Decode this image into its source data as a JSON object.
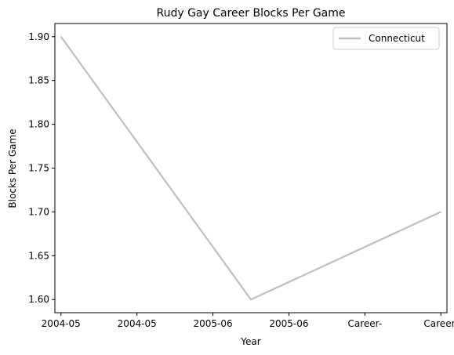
{
  "chart_data": {
    "type": "line",
    "title": "Rudy Gay Career Blocks Per Game",
    "xlabel": "Year",
    "ylabel": "Blocks Per Game",
    "x_tick_labels": [
      "2004-05",
      "2004-05",
      "2005-06",
      "2005-06",
      "Career-",
      "Career-"
    ],
    "x_range": [
      -0.08,
      5.08
    ],
    "ylim": [
      1.585,
      1.915
    ],
    "y_ticks": [
      1.6,
      1.65,
      1.7,
      1.75,
      1.8,
      1.85,
      1.9
    ],
    "y_tick_labels": [
      "1.60",
      "1.65",
      "1.70",
      "1.75",
      "1.80",
      "1.85",
      "1.90"
    ],
    "grid": false,
    "legend_position": "upper right",
    "series": [
      {
        "name": "Connecticut",
        "color": "#bfbfbf",
        "x": [
          0,
          2.5,
          5
        ],
        "y": [
          1.9,
          1.6,
          1.7
        ]
      }
    ]
  }
}
